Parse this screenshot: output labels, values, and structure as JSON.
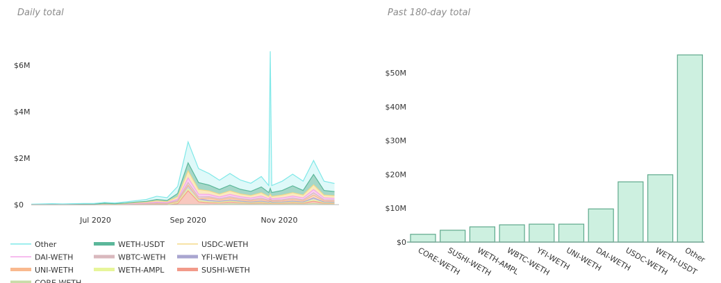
{
  "chart_data": [
    {
      "type": "area",
      "subtitle": "Daily total",
      "stacked": true,
      "x_ticks": [
        {
          "label": "Jul 2020",
          "date": "2020-07-01"
        },
        {
          "label": "Sep 2020",
          "date": "2020-09-01"
        },
        {
          "label": "Nov 2020",
          "date": "2020-11-01"
        }
      ],
      "y_ticks": [
        {
          "label": "$0",
          "value": 0
        },
        {
          "label": "$2M",
          "value": 2
        },
        {
          "label": "$4M",
          "value": 4
        },
        {
          "label": "$6M",
          "value": 6
        }
      ],
      "xlim": [
        "2020-05-19",
        "2020-12-11"
      ],
      "ylim": [
        0,
        6.6
      ],
      "x": [
        "2020-05-19",
        "2020-05-26",
        "2020-06-02",
        "2020-06-09",
        "2020-06-16",
        "2020-06-23",
        "2020-06-30",
        "2020-07-07",
        "2020-07-14",
        "2020-07-21",
        "2020-07-28",
        "2020-08-04",
        "2020-08-11",
        "2020-08-18",
        "2020-08-25",
        "2020-09-01",
        "2020-09-08",
        "2020-09-15",
        "2020-09-22",
        "2020-09-29",
        "2020-10-06",
        "2020-10-13",
        "2020-10-20",
        "2020-10-25",
        "2020-10-26",
        "2020-10-27",
        "2020-11-03",
        "2020-11-10",
        "2020-11-17",
        "2020-11-24",
        "2020-12-01",
        "2020-12-08"
      ],
      "legend_position": "bottom",
      "series": [
        {
          "name": "CORE-WETH",
          "color": "#c9dca8",
          "values": [
            0,
            0,
            0,
            0,
            0,
            0,
            0,
            0,
            0,
            0,
            0,
            0,
            0,
            0,
            0,
            0,
            0,
            0,
            0.02,
            0.04,
            0.03,
            0.02,
            0.03,
            0.02,
            0.03,
            0.02,
            0.02,
            0.03,
            0.02,
            0.05,
            0.02,
            0.02
          ]
        },
        {
          "name": "SUSHI-WETH",
          "color": "#f29a8a",
          "values": [
            0,
            0,
            0,
            0,
            0,
            0,
            0,
            0,
            0,
            0,
            0,
            0,
            0,
            0,
            0.04,
            0.6,
            0.12,
            0.08,
            0.06,
            0.08,
            0.06,
            0.04,
            0.05,
            0.03,
            0.04,
            0.03,
            0.04,
            0.05,
            0.04,
            0.1,
            0.04,
            0.03
          ]
        },
        {
          "name": "WETH-AMPL",
          "color": "#e7f59a",
          "values": [
            0,
            0,
            0,
            0,
            0,
            0,
            0,
            0.015,
            0.01,
            0.015,
            0.02,
            0.02,
            0.02,
            0.015,
            0.04,
            0.08,
            0.05,
            0.04,
            0.02,
            0.03,
            0.02,
            0.02,
            0.03,
            0.02,
            0.03,
            0.02,
            0.02,
            0.03,
            0.02,
            0.06,
            0.02,
            0.02
          ]
        },
        {
          "name": "YFI-WETH",
          "color": "#a9a6d0",
          "values": [
            0,
            0,
            0,
            0,
            0,
            0,
            0,
            0,
            0,
            0,
            0.01,
            0.015,
            0.02,
            0.02,
            0.05,
            0.15,
            0.08,
            0.06,
            0.04,
            0.05,
            0.04,
            0.03,
            0.04,
            0.03,
            0.04,
            0.03,
            0.03,
            0.04,
            0.03,
            0.08,
            0.03,
            0.03
          ]
        },
        {
          "name": "UNI-WETH",
          "color": "#f9b98f",
          "values": [
            0,
            0,
            0,
            0,
            0,
            0,
            0,
            0,
            0,
            0,
            0,
            0,
            0,
            0,
            0,
            0,
            0,
            0.1,
            0.06,
            0.08,
            0.06,
            0.05,
            0.07,
            0.05,
            0.06,
            0.05,
            0.05,
            0.07,
            0.05,
            0.12,
            0.05,
            0.05
          ]
        },
        {
          "name": "WBTC-WETH",
          "color": "#d9b8bd",
          "values": [
            0,
            0,
            0,
            0,
            0,
            0,
            0,
            0,
            0,
            0,
            0.01,
            0.015,
            0.03,
            0.025,
            0.05,
            0.12,
            0.08,
            0.06,
            0.05,
            0.06,
            0.05,
            0.05,
            0.06,
            0.04,
            0.05,
            0.04,
            0.05,
            0.06,
            0.05,
            0.1,
            0.05,
            0.05
          ]
        },
        {
          "name": "DAI-WETH",
          "color": "#f4a6e8",
          "values": [
            0.002,
            0.004,
            0.005,
            0.004,
            0.005,
            0.007,
            0.007,
            0.013,
            0.01,
            0.015,
            0.02,
            0.02,
            0.04,
            0.03,
            0.06,
            0.2,
            0.12,
            0.1,
            0.08,
            0.1,
            0.08,
            0.07,
            0.09,
            0.06,
            0.08,
            0.06,
            0.08,
            0.09,
            0.08,
            0.14,
            0.08,
            0.07
          ]
        },
        {
          "name": "USDC-WETH",
          "color": "#f5d98a",
          "values": [
            0.003,
            0.004,
            0.005,
            0.004,
            0.005,
            0.008,
            0.008,
            0.012,
            0.01,
            0.015,
            0.02,
            0.03,
            0.05,
            0.04,
            0.1,
            0.3,
            0.2,
            0.15,
            0.12,
            0.15,
            0.12,
            0.11,
            0.14,
            0.1,
            0.12,
            0.1,
            0.12,
            0.14,
            0.12,
            0.2,
            0.12,
            0.11
          ]
        },
        {
          "name": "WETH-USDT",
          "color": "#5bb79a",
          "values": [
            0.005,
            0.007,
            0.01,
            0.007,
            0.01,
            0.01,
            0.01,
            0.015,
            0.01,
            0.02,
            0.03,
            0.04,
            0.06,
            0.05,
            0.14,
            0.35,
            0.3,
            0.25,
            0.2,
            0.25,
            0.2,
            0.18,
            0.25,
            0.17,
            0.25,
            0.17,
            0.2,
            0.3,
            0.2,
            0.45,
            0.2,
            0.18
          ]
        },
        {
          "name": "Other",
          "color": "#7fe8e8",
          "values": [
            0.01,
            0.015,
            0.02,
            0.015,
            0.02,
            0.025,
            0.025,
            0.04,
            0.03,
            0.05,
            0.06,
            0.08,
            0.14,
            0.12,
            0.3,
            0.9,
            0.6,
            0.5,
            0.4,
            0.5,
            0.4,
            0.35,
            0.45,
            0.3,
            5.9,
            0.3,
            0.4,
            0.5,
            0.4,
            0.6,
            0.4,
            0.35
          ]
        }
      ],
      "legend_order": [
        "Other",
        "WETH-USDT",
        "USDC-WETH",
        "DAI-WETH",
        "WBTC-WETH",
        "YFI-WETH",
        "UNI-WETH",
        "WETH-AMPL",
        "SUSHI-WETH",
        "CORE-WETH"
      ]
    },
    {
      "type": "bar",
      "subtitle": "Past 180-day total",
      "color": "#cdf0e0",
      "edge_color": "#5ea88c",
      "categories": [
        "CORE-WETH",
        "SUSHI-WETH",
        "WETH-AMPL",
        "WBTC-WETH",
        "YFI-WETH",
        "UNI-WETH",
        "DAI-WETH",
        "USDC-WETH",
        "WETH-USDT",
        "Other"
      ],
      "values": [
        2.3,
        3.5,
        4.5,
        5.1,
        5.3,
        5.3,
        9.8,
        17.8,
        19.9,
        55.3
      ],
      "y_ticks": [
        {
          "label": "$0",
          "value": 0
        },
        {
          "label": "$10M",
          "value": 10
        },
        {
          "label": "$20M",
          "value": 20
        },
        {
          "label": "$30M",
          "value": 30
        },
        {
          "label": "$40M",
          "value": 40
        },
        {
          "label": "$50M",
          "value": 50
        }
      ],
      "ylim": [
        0,
        56
      ]
    }
  ]
}
